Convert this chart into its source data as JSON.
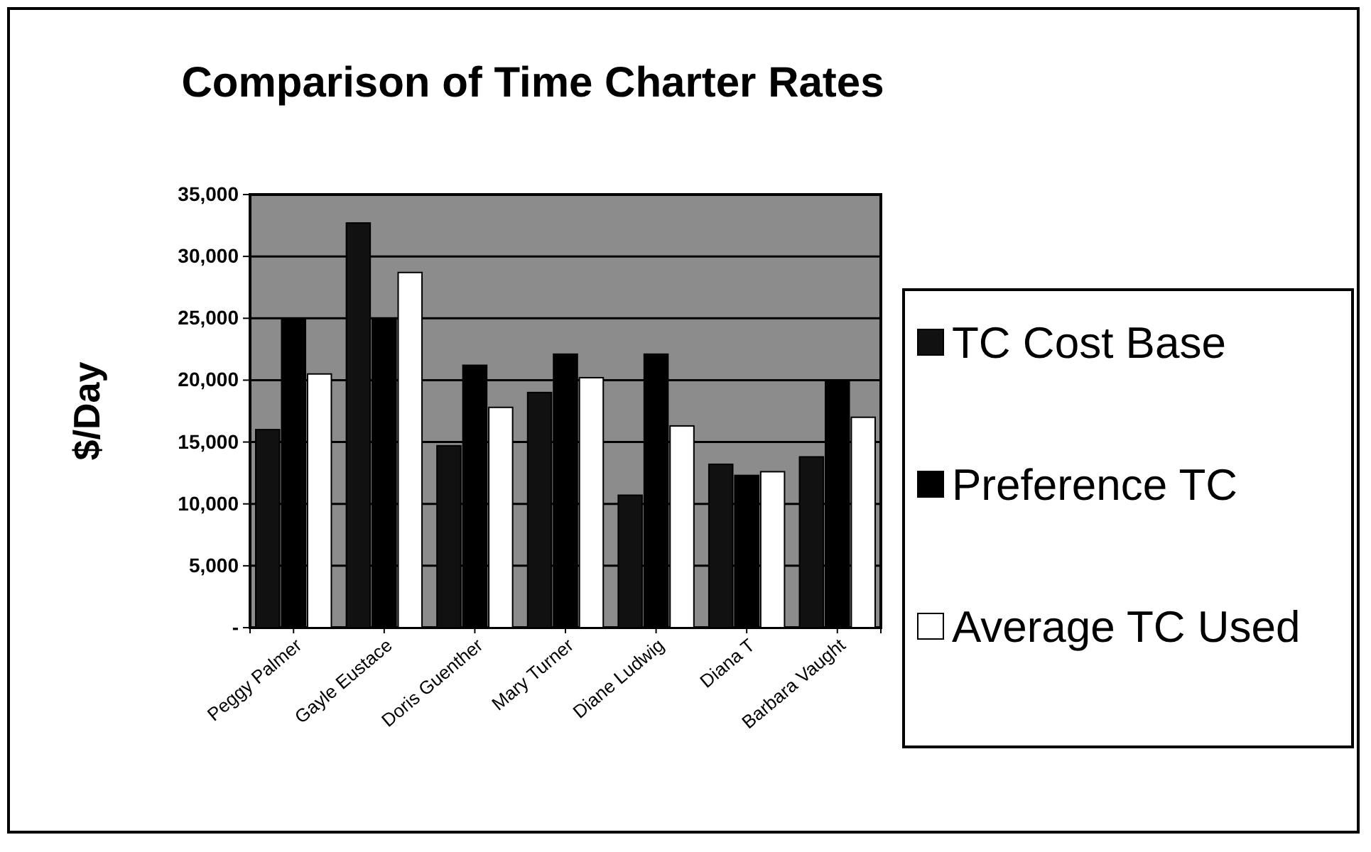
{
  "chart_data": {
    "type": "bar",
    "title": "Comparison of Time Charter Rates",
    "ylabel": "$/Day",
    "categories": [
      "Peggy Palmer",
      "Gayle Eustace",
      "Doris Guenther",
      "Mary Turner",
      "Diane Ludwig",
      "Diana T",
      "Barbara Vaught"
    ],
    "series": [
      {
        "name": "TC Cost Base",
        "color": "#111111",
        "values": [
          16000,
          32700,
          14700,
          19000,
          10700,
          13200,
          13800
        ]
      },
      {
        "name": "Preference TC",
        "color": "#000000",
        "values": [
          25000,
          25000,
          21200,
          22100,
          22100,
          12300,
          20000
        ]
      },
      {
        "name": "Average TC Used",
        "color": "#ffffff",
        "values": [
          20500,
          28700,
          17800,
          20200,
          16300,
          12600,
          17000
        ]
      }
    ],
    "ylim": [
      0,
      35000
    ],
    "yticks": [
      {
        "value": 0,
        "label": "-"
      },
      {
        "value": 5000,
        "label": "5,000"
      },
      {
        "value": 10000,
        "label": "10,000"
      },
      {
        "value": 15000,
        "label": "15,000"
      },
      {
        "value": 20000,
        "label": "20,000"
      },
      {
        "value": 25000,
        "label": "25,000"
      },
      {
        "value": 30000,
        "label": "30,000"
      },
      {
        "value": 35000,
        "label": "35,000"
      }
    ],
    "grid": "y",
    "legend": "right"
  }
}
